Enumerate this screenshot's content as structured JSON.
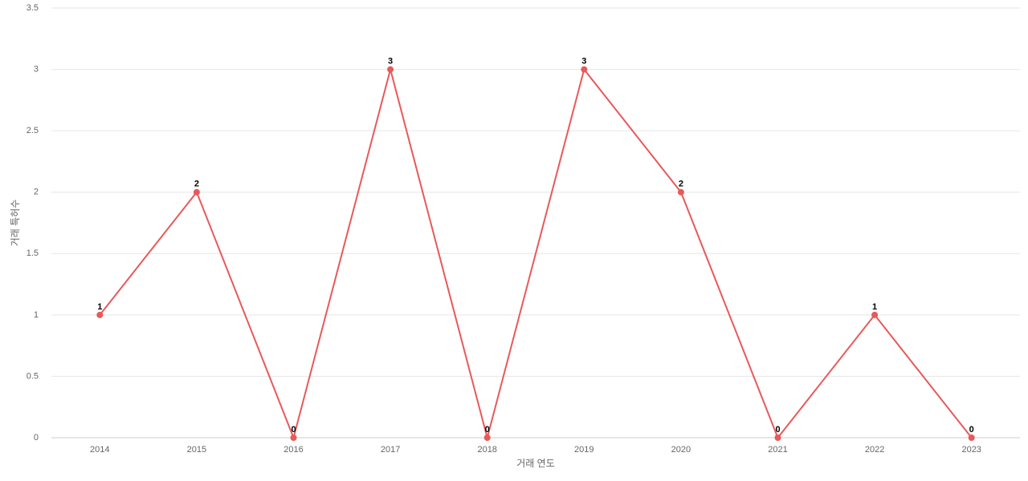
{
  "chart_data": {
    "type": "line",
    "x_label": "거래 연도",
    "y_label": "거래 특허수",
    "categories": [
      "2014",
      "2015",
      "2016",
      "2017",
      "2018",
      "2019",
      "2020",
      "2021",
      "2022",
      "2023"
    ],
    "series": [
      {
        "name": "거래 특허수",
        "color": "#e8595a",
        "values": [
          1,
          2,
          0,
          3,
          0,
          3,
          2,
          0,
          1,
          0
        ]
      }
    ],
    "ylim": [
      0,
      3.5
    ],
    "yticks": [
      0,
      0.5,
      1,
      1.5,
      2,
      2.5,
      3,
      3.5
    ],
    "grid": true
  }
}
